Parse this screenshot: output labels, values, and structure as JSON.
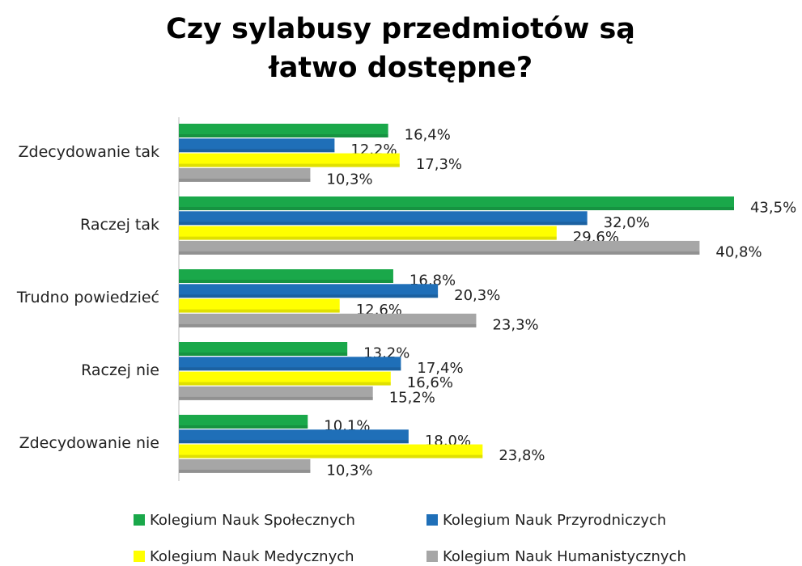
{
  "chart_data": {
    "type": "hbar",
    "title": "Czy sylabusy przedmiotów są łatwo dostępne?",
    "categories": [
      "Zdecydowanie tak",
      "Raczej tak",
      "Trudno powiedzieć",
      "Raczej nie",
      "Zdecydowanie nie"
    ],
    "series": [
      {
        "name": "Kolegium Nauk Społecznych",
        "color": "#1aa84a",
        "values": [
          16.4,
          43.5,
          16.8,
          13.2,
          10.1
        ],
        "value_labels": [
          "16,4%",
          "43,5%",
          "16,8%",
          "13,2%",
          "10,1%"
        ]
      },
      {
        "name": "Kolegium Nauk Przyrodniczych",
        "color": "#1f6fb8",
        "values": [
          12.2,
          32.0,
          20.3,
          17.4,
          18.0
        ],
        "value_labels": [
          "12,2%",
          "32,0%",
          "20,3%",
          "17,4%",
          "18,0%"
        ]
      },
      {
        "name": "Kolegium Nauk Medycznych",
        "color": "#ffff00",
        "values": [
          17.3,
          29.6,
          12.6,
          16.6,
          23.8
        ],
        "value_labels": [
          "17,3%",
          "29,6%",
          "12,6%",
          "16,6%",
          "23,8%"
        ]
      },
      {
        "name": "Kolegium Nauk Humanistycznych",
        "color": "#a6a6a6",
        "values": [
          10.3,
          40.8,
          23.3,
          15.2,
          10.3
        ],
        "value_labels": [
          "10,3%",
          "40,8%",
          "23,3%",
          "15,2%",
          "10,3%"
        ]
      }
    ],
    "legend": "bottom"
  }
}
